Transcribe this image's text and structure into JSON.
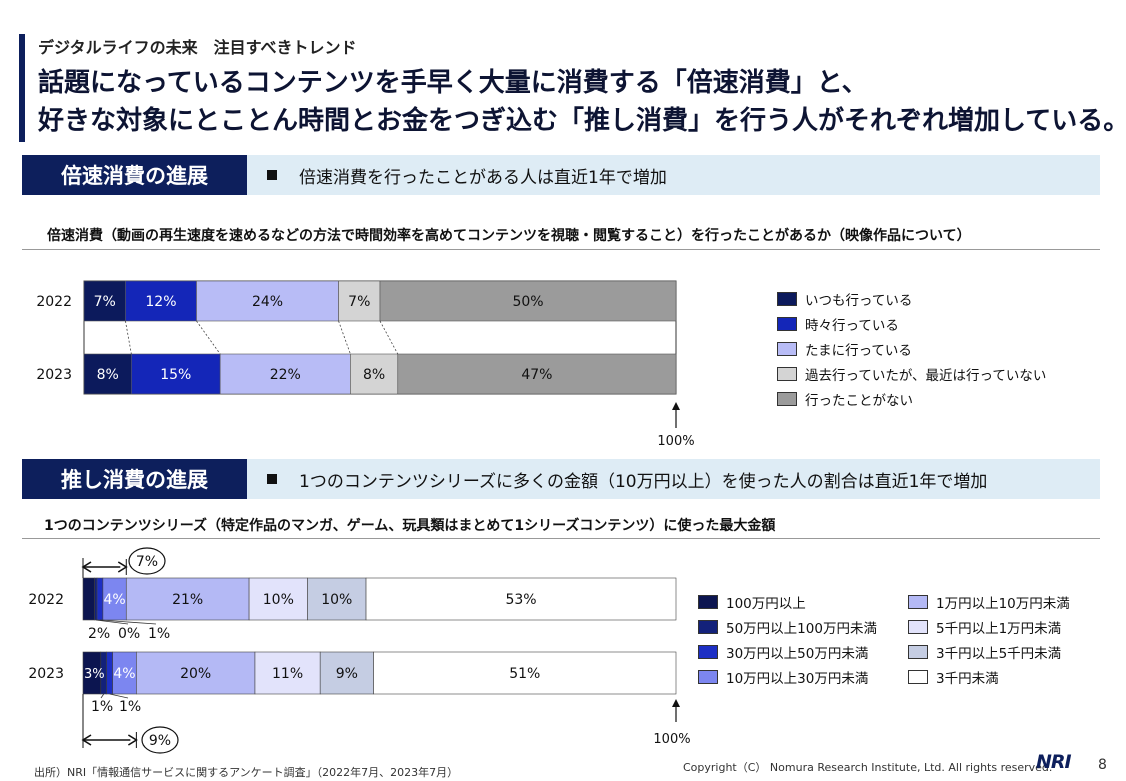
{
  "header": {
    "subtitle": "デジタルライフの未来　注目すべきトレンド",
    "headline_line1": "話題になっているコンテンツを手早く大量に消費する「倍速消費」と、",
    "headline_line2": "好きな対象にとことん時間とお金をつぎ込む「推し消費」を行う人がそれぞれ増加している。"
  },
  "section1": {
    "label": "倍速消費の進展",
    "summary": "倍速消費を行ったことがある人は直近1年で増加",
    "chart_title": "倍速消費（動画の再生速度を速めるなどの方法で時間効率を高めてコンテンツを視聴・閲覧すること）を行ったことがあるか（映像作品について）"
  },
  "section2": {
    "label": "推し消費の進展",
    "summary": "1つのコンテンツシリーズに多くの金額（10万円以上）を使った人の割合は直近1年で増加",
    "chart_title": "1つのコンテンツシリーズ（特定作品のマンガ、ゲーム、玩具類はまとめて1シリーズコンテンツ）に使った最大金額"
  },
  "chart_data": [
    {
      "type": "bar",
      "stacked": true,
      "orientation": "horizontal",
      "categories": [
        "2022",
        "2023"
      ],
      "series": [
        {
          "name": "いつも行っている",
          "values": [
            7,
            8
          ],
          "labels": [
            "7%",
            "8%"
          ],
          "color": "#0c1a5c"
        },
        {
          "name": "時々行っている",
          "values": [
            12,
            15
          ],
          "labels": [
            "12%",
            "15%"
          ],
          "color": "#1426b8"
        },
        {
          "name": "たまに行っている",
          "values": [
            24,
            22
          ],
          "labels": [
            "24%",
            "22%"
          ],
          "color": "#b8bcf6"
        },
        {
          "name": "過去行っていたが、最近は行っていない",
          "values": [
            7,
            8
          ],
          "labels": [
            "7%",
            "8%"
          ],
          "color": "#d4d4d4"
        },
        {
          "name": "行ったことがない",
          "values": [
            50,
            47
          ],
          "labels": [
            "50%",
            "47%"
          ],
          "color": "#9b9b9b"
        }
      ],
      "end_label": "100%",
      "legend_position": "right"
    },
    {
      "type": "bar",
      "stacked": true,
      "orientation": "horizontal",
      "categories": [
        "2022",
        "2023"
      ],
      "series": [
        {
          "name": "100万円以上",
          "values": [
            2,
            3
          ],
          "labels": [
            "2%",
            "3%"
          ],
          "color": "#0c1550"
        },
        {
          "name": "50万円以上100万円未満",
          "values": [
            0.4,
            1
          ],
          "labels": [
            "0%",
            "1%"
          ],
          "color": "#13217a"
        },
        {
          "name": "30万円以上50万円未満",
          "values": [
            1,
            1
          ],
          "labels": [
            "1%",
            "1%"
          ],
          "color": "#1d2fc4"
        },
        {
          "name": "10万円以上30万円未満",
          "values": [
            4,
            4
          ],
          "labels": [
            "4%",
            "4%"
          ],
          "color": "#7c86f0"
        },
        {
          "name": "1万円以上10万円未満",
          "values": [
            21,
            20
          ],
          "labels": [
            "21%",
            "20%"
          ],
          "color": "#b4b9f5"
        },
        {
          "name": "5千円以上1万円未満",
          "values": [
            10,
            11
          ],
          "labels": [
            "10%",
            "11%"
          ],
          "color": "#e2e3fb"
        },
        {
          "name": "3千円以上5千円未満",
          "values": [
            10,
            9
          ],
          "labels": [
            "10%",
            "9%"
          ],
          "color": "#c5cde3"
        },
        {
          "name": "3千円未満",
          "values": [
            53,
            51
          ],
          "labels": [
            "53%",
            "51%"
          ],
          "color": "#ffffff"
        }
      ],
      "totals_10man_plus": [
        "7%",
        "9%"
      ],
      "end_label": "100%",
      "legend_position": "right"
    }
  ],
  "footer": {
    "source": "出所）NRI「情報通信サービスに関するアンケート調査」（2022年7月、2023年7月）",
    "copyright": "Copyright（C） Nomura Research Institute, Ltd. All rights reserved.",
    "logo": "NRI",
    "page": "8"
  }
}
